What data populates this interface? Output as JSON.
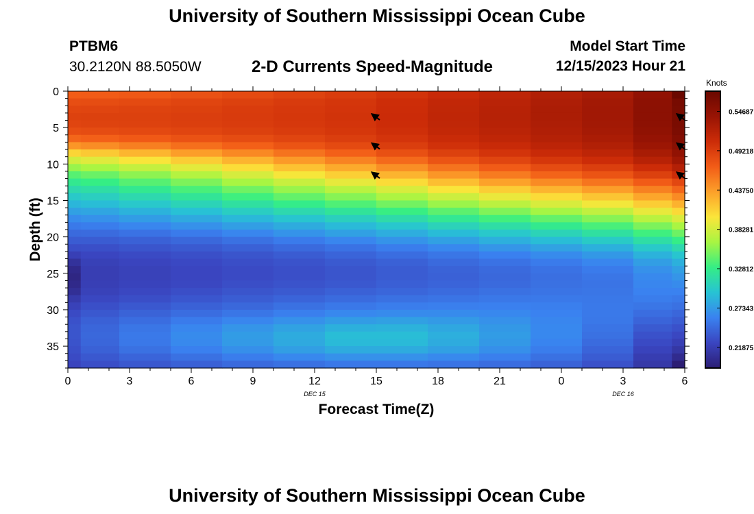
{
  "header": {
    "title": "University of Southern Mississippi Ocean Cube",
    "station_id": "PTBM6",
    "station_coords": "30.2120N  88.5050W",
    "plot_title": "2-D Currents Speed-Magnitude",
    "model_start_label": "Model Start Time",
    "model_start_value": "12/15/2023 Hour 21"
  },
  "footer": {
    "title": "University of Southern Mississippi Ocean Cube"
  },
  "chart_data": {
    "type": "heatmap",
    "title": "2-D Currents Speed-Magnitude",
    "xlabel": "Forecast Time(Z)",
    "ylabel": "Depth (ft)",
    "x_ticks": [
      "0",
      "3",
      "6",
      "9",
      "12",
      "15",
      "18",
      "21",
      "0",
      "3",
      "6"
    ],
    "x_range_hours": [
      0,
      30
    ],
    "date_labels": [
      {
        "text": "DEC 15",
        "at_hour": 12
      },
      {
        "text": "DEC 16",
        "at_hour": 27
      }
    ],
    "y_ticks": [
      0,
      5,
      10,
      15,
      20,
      25,
      30,
      35
    ],
    "y_range_ft": [
      0,
      38
    ],
    "colorbar": {
      "label": "Knots",
      "tick_labels": [
        "0.54687",
        "0.49218",
        "0.43750",
        "0.38281",
        "0.32812",
        "0.27343",
        "0.21875"
      ],
      "min": 0.19,
      "max": 0.575,
      "stops": [
        "#2c1e74",
        "#3a45c0",
        "#3a82f0",
        "#27c3d4",
        "#35ee85",
        "#a8f542",
        "#fbe53a",
        "#fca02a",
        "#f25c17",
        "#cc2c08",
        "#981404",
        "#6a0800"
      ]
    },
    "columns_time_hours": [
      0,
      1.25,
      3.75,
      6.25,
      8.75,
      11.25,
      13.75,
      16.25,
      18.75,
      21.25,
      23.75,
      26.25,
      28.75,
      30
    ],
    "depth_rows_ft": [
      0.5,
      1.5,
      2.5,
      3.5,
      4.5,
      5.5,
      6.5,
      7.5,
      8.5,
      9.5,
      10.5,
      11.5,
      12.5,
      13.5,
      14.5,
      15.5,
      16.5,
      17.5,
      18.5,
      19.5,
      20.5,
      21.5,
      22.5,
      23.5,
      24.5,
      25.5,
      26.5,
      27.5,
      28.5,
      29.5,
      30.5,
      31.5,
      32.5,
      33.5,
      34.5,
      35.5,
      36.5,
      37.5
    ],
    "speed_knots": [
      [
        0.47,
        0.471,
        0.473,
        0.478,
        0.483,
        0.488,
        0.493,
        0.5,
        0.508,
        0.515,
        0.523,
        0.53,
        0.545,
        0.575
      ],
      [
        0.48,
        0.481,
        0.483,
        0.487,
        0.49,
        0.494,
        0.498,
        0.504,
        0.512,
        0.518,
        0.526,
        0.533,
        0.548,
        0.565
      ],
      [
        0.486,
        0.487,
        0.488,
        0.49,
        0.493,
        0.496,
        0.499,
        0.505,
        0.513,
        0.519,
        0.527,
        0.534,
        0.549,
        0.564
      ],
      [
        0.489,
        0.49,
        0.49,
        0.492,
        0.494,
        0.497,
        0.5,
        0.506,
        0.514,
        0.52,
        0.527,
        0.534,
        0.549,
        0.564
      ],
      [
        0.487,
        0.488,
        0.489,
        0.491,
        0.493,
        0.496,
        0.499,
        0.505,
        0.513,
        0.519,
        0.526,
        0.533,
        0.548,
        0.563
      ],
      [
        0.48,
        0.482,
        0.484,
        0.487,
        0.49,
        0.493,
        0.497,
        0.503,
        0.511,
        0.517,
        0.524,
        0.531,
        0.546,
        0.561
      ],
      [
        0.465,
        0.468,
        0.472,
        0.477,
        0.482,
        0.487,
        0.492,
        0.499,
        0.507,
        0.514,
        0.521,
        0.528,
        0.542,
        0.557
      ],
      [
        0.44,
        0.445,
        0.452,
        0.46,
        0.468,
        0.476,
        0.483,
        0.492,
        0.501,
        0.508,
        0.516,
        0.523,
        0.537,
        0.552
      ],
      [
        0.408,
        0.414,
        0.424,
        0.436,
        0.447,
        0.458,
        0.468,
        0.479,
        0.49,
        0.499,
        0.508,
        0.515,
        0.529,
        0.545
      ],
      [
        0.382,
        0.388,
        0.399,
        0.412,
        0.425,
        0.438,
        0.45,
        0.463,
        0.476,
        0.487,
        0.497,
        0.505,
        0.519,
        0.536
      ],
      [
        0.36,
        0.366,
        0.377,
        0.39,
        0.404,
        0.418,
        0.43,
        0.444,
        0.458,
        0.471,
        0.482,
        0.491,
        0.505,
        0.522
      ],
      [
        0.34,
        0.346,
        0.357,
        0.37,
        0.384,
        0.398,
        0.411,
        0.425,
        0.44,
        0.454,
        0.466,
        0.476,
        0.49,
        0.505
      ],
      [
        0.325,
        0.33,
        0.34,
        0.352,
        0.365,
        0.378,
        0.391,
        0.405,
        0.42,
        0.434,
        0.446,
        0.457,
        0.471,
        0.485
      ],
      [
        0.312,
        0.316,
        0.325,
        0.336,
        0.348,
        0.36,
        0.372,
        0.385,
        0.399,
        0.412,
        0.425,
        0.436,
        0.451,
        0.465
      ],
      [
        0.3,
        0.304,
        0.312,
        0.322,
        0.333,
        0.344,
        0.355,
        0.367,
        0.38,
        0.393,
        0.405,
        0.416,
        0.432,
        0.446
      ],
      [
        0.288,
        0.292,
        0.299,
        0.308,
        0.318,
        0.328,
        0.338,
        0.349,
        0.361,
        0.373,
        0.385,
        0.396,
        0.412,
        0.426
      ],
      [
        0.276,
        0.279,
        0.286,
        0.294,
        0.303,
        0.312,
        0.321,
        0.331,
        0.342,
        0.353,
        0.364,
        0.375,
        0.392,
        0.406
      ],
      [
        0.265,
        0.268,
        0.274,
        0.281,
        0.289,
        0.297,
        0.305,
        0.314,
        0.324,
        0.334,
        0.344,
        0.355,
        0.372,
        0.386
      ],
      [
        0.255,
        0.257,
        0.262,
        0.268,
        0.275,
        0.282,
        0.29,
        0.298,
        0.307,
        0.316,
        0.326,
        0.336,
        0.352,
        0.366
      ],
      [
        0.246,
        0.247,
        0.251,
        0.256,
        0.262,
        0.269,
        0.276,
        0.283,
        0.291,
        0.299,
        0.308,
        0.318,
        0.333,
        0.347
      ],
      [
        0.238,
        0.238,
        0.241,
        0.245,
        0.25,
        0.256,
        0.262,
        0.269,
        0.276,
        0.284,
        0.292,
        0.301,
        0.316,
        0.329
      ],
      [
        0.23,
        0.231,
        0.234,
        0.237,
        0.241,
        0.246,
        0.251,
        0.257,
        0.263,
        0.27,
        0.277,
        0.285,
        0.3,
        0.312
      ],
      [
        0.22,
        0.225,
        0.228,
        0.231,
        0.234,
        0.238,
        0.243,
        0.248,
        0.253,
        0.259,
        0.265,
        0.272,
        0.286,
        0.297
      ],
      [
        0.208,
        0.221,
        0.224,
        0.227,
        0.23,
        0.233,
        0.237,
        0.241,
        0.246,
        0.251,
        0.256,
        0.262,
        0.275,
        0.285
      ],
      [
        0.2,
        0.219,
        0.222,
        0.225,
        0.228,
        0.231,
        0.234,
        0.238,
        0.242,
        0.246,
        0.251,
        0.256,
        0.268,
        0.276
      ],
      [
        0.197,
        0.219,
        0.222,
        0.225,
        0.228,
        0.231,
        0.234,
        0.238,
        0.241,
        0.245,
        0.249,
        0.253,
        0.264,
        0.27
      ],
      [
        0.2,
        0.22,
        0.223,
        0.226,
        0.23,
        0.233,
        0.236,
        0.24,
        0.243,
        0.246,
        0.25,
        0.252,
        0.262,
        0.265
      ],
      [
        0.205,
        0.222,
        0.226,
        0.23,
        0.234,
        0.237,
        0.241,
        0.244,
        0.247,
        0.25,
        0.252,
        0.253,
        0.26,
        0.26
      ],
      [
        0.215,
        0.226,
        0.23,
        0.235,
        0.239,
        0.243,
        0.247,
        0.25,
        0.252,
        0.254,
        0.255,
        0.254,
        0.257,
        0.255
      ],
      [
        0.222,
        0.231,
        0.236,
        0.241,
        0.245,
        0.25,
        0.254,
        0.257,
        0.258,
        0.259,
        0.258,
        0.255,
        0.253,
        0.25
      ],
      [
        0.228,
        0.236,
        0.242,
        0.248,
        0.253,
        0.258,
        0.263,
        0.265,
        0.265,
        0.263,
        0.26,
        0.255,
        0.248,
        0.244
      ],
      [
        0.232,
        0.241,
        0.248,
        0.256,
        0.262,
        0.268,
        0.274,
        0.276,
        0.273,
        0.268,
        0.262,
        0.254,
        0.243,
        0.238
      ],
      [
        0.234,
        0.244,
        0.253,
        0.262,
        0.27,
        0.277,
        0.285,
        0.286,
        0.28,
        0.272,
        0.263,
        0.252,
        0.237,
        0.232
      ],
      [
        0.234,
        0.245,
        0.255,
        0.265,
        0.274,
        0.282,
        0.292,
        0.292,
        0.284,
        0.274,
        0.263,
        0.25,
        0.232,
        0.226
      ],
      [
        0.233,
        0.244,
        0.254,
        0.264,
        0.273,
        0.281,
        0.29,
        0.29,
        0.282,
        0.272,
        0.261,
        0.247,
        0.228,
        0.22
      ],
      [
        0.231,
        0.241,
        0.25,
        0.259,
        0.267,
        0.275,
        0.282,
        0.282,
        0.276,
        0.267,
        0.257,
        0.243,
        0.223,
        0.212
      ],
      [
        0.228,
        0.236,
        0.243,
        0.25,
        0.257,
        0.263,
        0.268,
        0.268,
        0.264,
        0.258,
        0.25,
        0.238,
        0.218,
        0.202
      ],
      [
        0.224,
        0.23,
        0.236,
        0.241,
        0.246,
        0.25,
        0.254,
        0.254,
        0.252,
        0.248,
        0.242,
        0.232,
        0.214,
        0.19
      ]
    ],
    "vectors": [
      {
        "time_hour": 15,
        "depth_ft": 3.5,
        "direction": "NW"
      },
      {
        "time_hour": 15,
        "depth_ft": 7.5,
        "direction": "NW"
      },
      {
        "time_hour": 15,
        "depth_ft": 11.5,
        "direction": "NW"
      },
      {
        "time_hour": 30,
        "depth_ft": 3.5,
        "direction": "NW"
      },
      {
        "time_hour": 30,
        "depth_ft": 7.5,
        "direction": "NW"
      },
      {
        "time_hour": 30,
        "depth_ft": 11.5,
        "direction": "NW"
      }
    ]
  }
}
